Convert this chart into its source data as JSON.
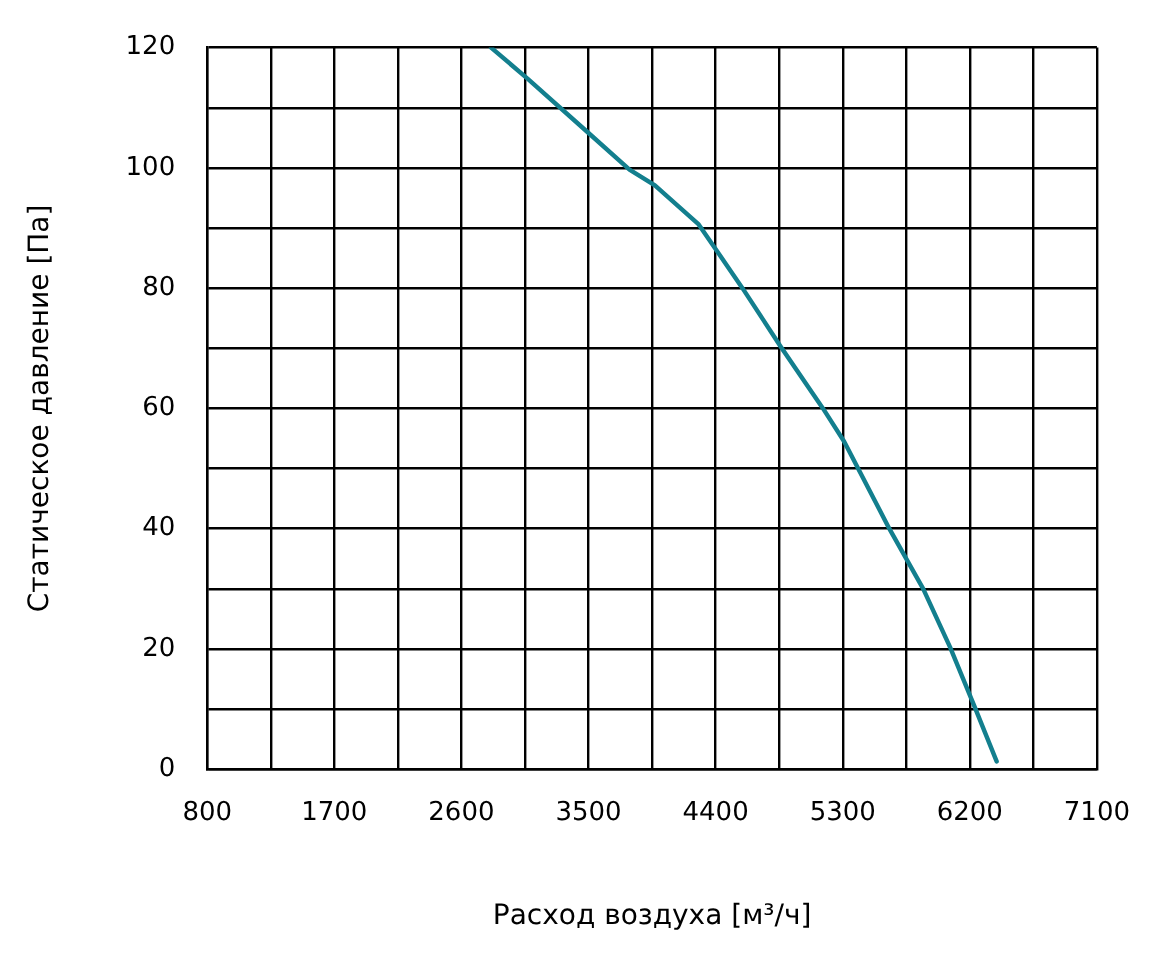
{
  "chart_data": {
    "type": "line",
    "xlabel": "Расход воздуха [м³/ч]",
    "ylabel": "Статическое давление [Па]",
    "series": [
      {
        "color": "#137f8e",
        "x": [
          2810,
          3070,
          3500,
          3790,
          3970,
          4280,
          4590,
          4860,
          5160,
          5310,
          5630,
          5870,
          6060,
          6230,
          6390
        ],
        "values": [
          120,
          114.8,
          105.8,
          99.7,
          97.1,
          90.6,
          80,
          70.3,
          60,
          54.5,
          40,
          30,
          20.3,
          10.6,
          1.3
        ]
      }
    ],
    "xlim": [
      800,
      7100
    ],
    "xticks": [
      800,
      {
        "value": 1250,
        "label": null
      },
      1700,
      {
        "value": 2150,
        "label": null
      },
      2600,
      {
        "value": 3050,
        "label": null
      },
      3500,
      {
        "value": 3950,
        "label": null
      },
      4400,
      {
        "value": 4850,
        "label": null
      },
      5300,
      {
        "value": 5750,
        "label": null
      },
      6200,
      {
        "value": 6650,
        "label": null
      },
      7100
    ],
    "ylim": [
      0,
      120
    ],
    "yticks": [
      0,
      {
        "value": 10,
        "label": null
      },
      20,
      {
        "value": 30,
        "label": null
      },
      40,
      {
        "value": 50,
        "label": null
      },
      60,
      {
        "value": 70,
        "label": null
      },
      80,
      {
        "value": 90,
        "label": null
      },
      100,
      {
        "value": 110,
        "label": null
      },
      120
    ],
    "grid": true,
    "legend": false,
    "marker": "none",
    "line_style": "solid"
  }
}
